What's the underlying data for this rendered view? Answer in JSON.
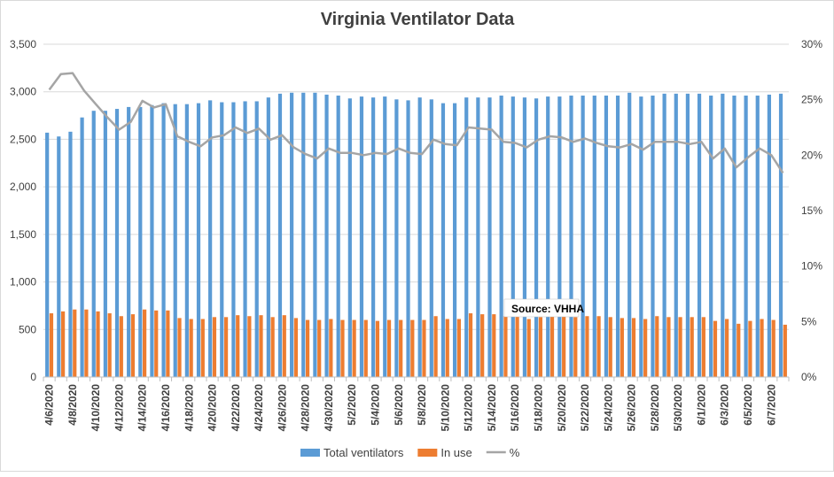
{
  "chart_data": {
    "type": "bar",
    "title": "Virginia Ventilator Data",
    "y_left": {
      "lim": [
        0,
        3500
      ],
      "ticks": [
        "0",
        "500",
        "1,000",
        "1,500",
        "2,000",
        "2,500",
        "3,000",
        "3,500"
      ]
    },
    "y_right": {
      "lim": [
        0,
        30
      ],
      "ticks": [
        "0%",
        "5%",
        "10%",
        "15%",
        "20%",
        "25%",
        "30%"
      ]
    },
    "grid": true,
    "legend_position": "bottom",
    "x_tick_labels": [
      "4/6/2020",
      "4/8/2020",
      "4/10/2020",
      "4/12/2020",
      "4/14/2020",
      "4/16/2020",
      "4/18/2020",
      "4/20/2020",
      "4/22/2020",
      "4/24/2020",
      "4/26/2020",
      "4/28/2020",
      "4/30/2020",
      "5/2/2020",
      "5/4/2020",
      "5/6/2020",
      "5/8/2020",
      "5/10/2020",
      "5/12/2020",
      "5/14/2020",
      "5/16/2020",
      "5/18/2020",
      "5/20/2020",
      "5/22/2020",
      "5/24/2020",
      "5/26/2020",
      "5/28/2020",
      "5/30/2020",
      "6/1/2020",
      "6/3/2020",
      "6/5/2020",
      "6/7/2020"
    ],
    "x": [
      "4/6/2020",
      "4/7/2020",
      "4/8/2020",
      "4/9/2020",
      "4/10/2020",
      "4/11/2020",
      "4/12/2020",
      "4/13/2020",
      "4/14/2020",
      "4/15/2020",
      "4/16/2020",
      "4/17/2020",
      "4/18/2020",
      "4/19/2020",
      "4/20/2020",
      "4/21/2020",
      "4/22/2020",
      "4/23/2020",
      "4/24/2020",
      "4/25/2020",
      "4/26/2020",
      "4/27/2020",
      "4/28/2020",
      "4/29/2020",
      "4/30/2020",
      "5/1/2020",
      "5/2/2020",
      "5/3/2020",
      "5/4/2020",
      "5/5/2020",
      "5/6/2020",
      "5/7/2020",
      "5/8/2020",
      "5/9/2020",
      "5/10/2020",
      "5/11/2020",
      "5/12/2020",
      "5/13/2020",
      "5/14/2020",
      "5/15/2020",
      "5/16/2020",
      "5/17/2020",
      "5/18/2020",
      "5/19/2020",
      "5/20/2020",
      "5/21/2020",
      "5/22/2020",
      "5/23/2020",
      "5/24/2020",
      "5/25/2020",
      "5/26/2020",
      "5/27/2020",
      "5/28/2020",
      "5/29/2020",
      "5/30/2020",
      "5/31/2020",
      "6/1/2020",
      "6/2/2020",
      "6/3/2020",
      "6/4/2020",
      "6/5/2020",
      "6/6/2020",
      "6/7/2020",
      "6/8/2020"
    ],
    "series": [
      {
        "name": "Total ventilators",
        "kind": "bar",
        "axis": "left",
        "color": "#5b9bd5",
        "values": [
          2570,
          2530,
          2580,
          2730,
          2800,
          2800,
          2820,
          2840,
          2840,
          2860,
          2880,
          2870,
          2870,
          2880,
          2910,
          2890,
          2890,
          2900,
          2900,
          2940,
          2980,
          2990,
          2990,
          2990,
          2970,
          2960,
          2930,
          2950,
          2940,
          2950,
          2920,
          2910,
          2940,
          2920,
          2880,
          2880,
          2940,
          2940,
          2940,
          2960,
          2950,
          2940,
          2930,
          2950,
          2950,
          2960,
          2960,
          2960,
          2960,
          2960,
          2990,
          2950,
          2960,
          2980,
          2980,
          2980,
          2980,
          2960,
          2980,
          2960,
          2960,
          2960,
          2970,
          2980
        ]
      },
      {
        "name": "In use",
        "kind": "bar",
        "axis": "left",
        "color": "#ed7d31",
        "values": [
          670,
          690,
          710,
          710,
          690,
          670,
          640,
          660,
          710,
          700,
          700,
          620,
          610,
          610,
          630,
          630,
          650,
          640,
          650,
          630,
          650,
          620,
          600,
          600,
          610,
          600,
          600,
          600,
          590,
          600,
          600,
          600,
          600,
          640,
          610,
          610,
          670,
          660,
          660,
          640,
          640,
          610,
          630,
          640,
          640,
          630,
          640,
          640,
          630,
          620,
          620,
          610,
          640,
          630,
          630,
          630,
          630,
          590,
          610,
          560,
          590,
          610,
          600,
          550
        ]
      },
      {
        "name": "%",
        "kind": "line",
        "axis": "right",
        "color": "#a5a5a5",
        "values": [
          25.9,
          27.3,
          27.4,
          25.8,
          24.6,
          23.4,
          22.3,
          23.0,
          24.9,
          24.3,
          24.6,
          21.7,
          21.2,
          20.8,
          21.6,
          21.8,
          22.5,
          22.0,
          22.4,
          21.4,
          21.8,
          20.7,
          20.1,
          19.7,
          20.6,
          20.2,
          20.2,
          20.0,
          20.2,
          20.1,
          20.6,
          20.2,
          20.1,
          21.4,
          21.0,
          20.9,
          22.5,
          22.4,
          22.3,
          21.2,
          21.1,
          20.7,
          21.4,
          21.7,
          21.6,
          21.2,
          21.5,
          21.1,
          20.8,
          20.7,
          21.0,
          20.5,
          21.2,
          21.2,
          21.2,
          21.0,
          21.2,
          19.7,
          20.6,
          18.9,
          19.8,
          20.6,
          20.0,
          18.4
        ]
      }
    ],
    "annotation": "Source: VHHA"
  }
}
